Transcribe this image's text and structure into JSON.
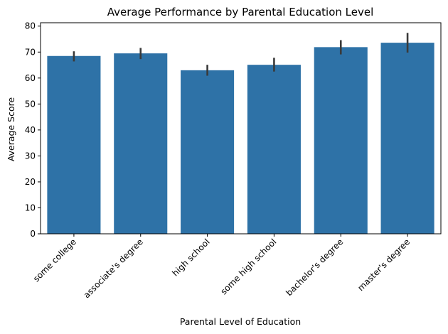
{
  "chart_data": {
    "type": "bar",
    "title": "Average Performance by Parental Education Level",
    "xlabel": "Parental Level of Education",
    "ylabel": "Average Score",
    "categories": [
      "some college",
      "associate's degree",
      "high school",
      "some high school",
      "bachelor's degree",
      "master's degree"
    ],
    "values": [
      68.5,
      69.5,
      63.0,
      65.1,
      71.9,
      73.6
    ],
    "error_low": [
      66.4,
      67.3,
      60.9,
      62.5,
      69.1,
      69.8
    ],
    "error_high": [
      70.3,
      71.6,
      65.1,
      67.8,
      74.6,
      77.4
    ],
    "yticks": [
      0,
      10,
      20,
      30,
      40,
      50,
      60,
      70,
      80
    ],
    "ylim": [
      0,
      81.3
    ],
    "grid": false,
    "colors": {
      "bar": "#2e72a7",
      "error_bar": "#3a3a3a",
      "axis": "#000000"
    }
  }
}
